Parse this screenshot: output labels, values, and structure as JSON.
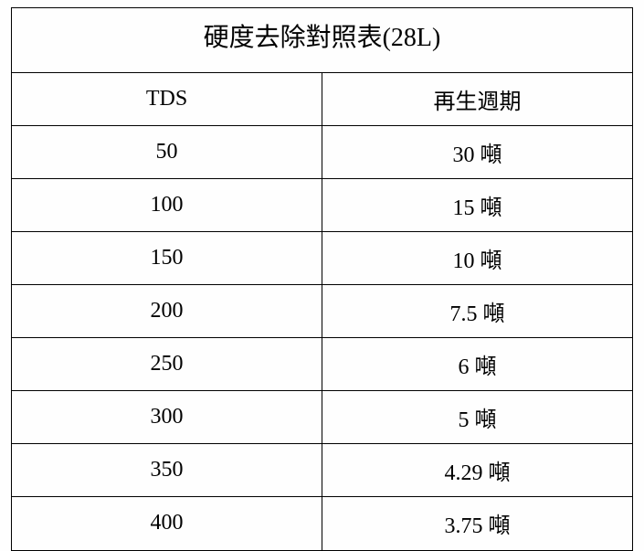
{
  "table": {
    "title": "硬度去除對照表(28L)",
    "title_fontsize": 28,
    "cell_fontsize": 24,
    "border_color": "#000000",
    "background_color": "#fefefe",
    "text_color": "#000000",
    "columns": [
      "TDS",
      "再生週期"
    ],
    "rows": [
      [
        "50",
        "30 噸"
      ],
      [
        "100",
        "15 噸"
      ],
      [
        "150",
        "10 噸"
      ],
      [
        "200",
        "7.5 噸"
      ],
      [
        "250",
        "6 噸"
      ],
      [
        "300",
        "5 噸"
      ],
      [
        "350",
        "4.29 噸"
      ],
      [
        "400",
        "3.75 噸"
      ]
    ]
  }
}
